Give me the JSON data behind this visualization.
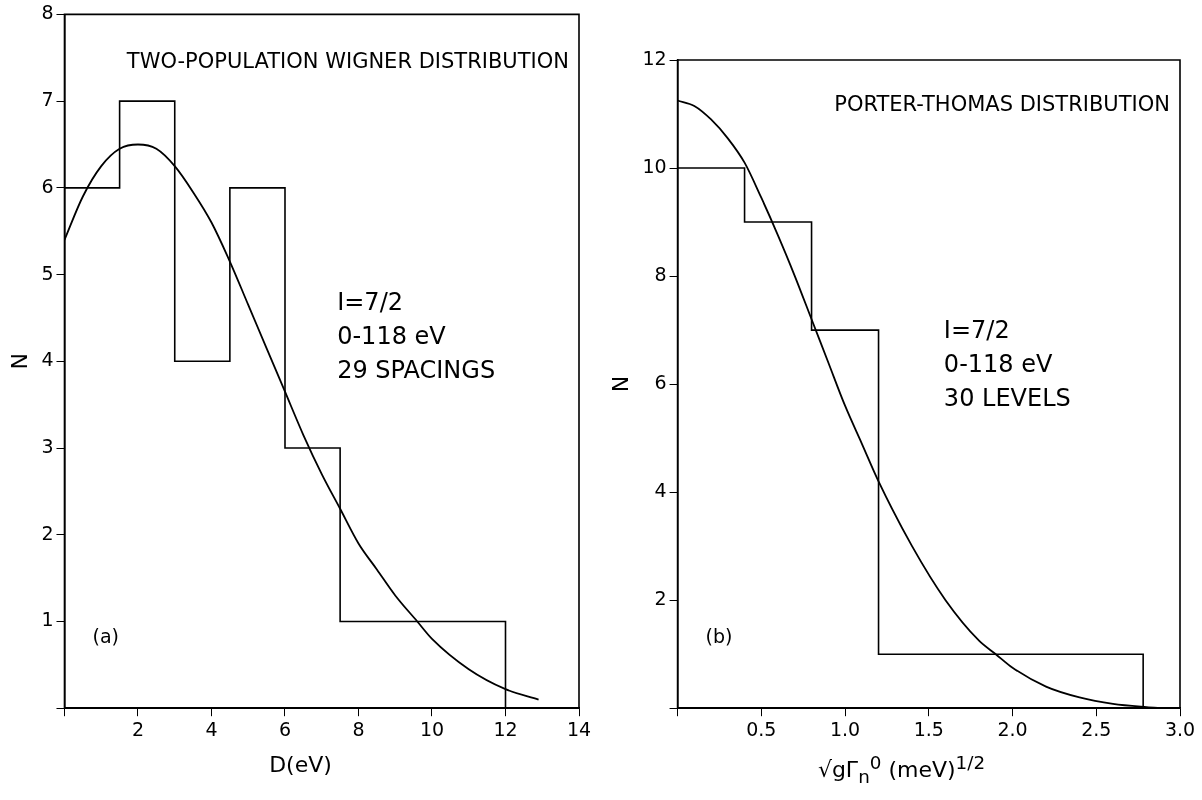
{
  "chart_data": [
    {
      "type": "histogram",
      "title": "TWO-POPULATION WIGNER DISTRIBUTION",
      "xlabel": "D(eV)",
      "ylabel": "N",
      "series": [
        {
          "type": "histogram",
          "color": "#000000",
          "bins": [
            0,
            1.5,
            3,
            4.5,
            6,
            7.5,
            12
          ],
          "values": [
            6,
            7,
            4,
            6,
            3,
            1
          ]
        },
        {
          "type": "line",
          "color": "#000000",
          "x": [
            0,
            0.5,
            1,
            1.5,
            2,
            2.5,
            3,
            3.5,
            4,
            4.5,
            5,
            5.5,
            6,
            6.5,
            7,
            7.5,
            8,
            8.5,
            9,
            9.6,
            10,
            11,
            12,
            12.9
          ],
          "values": [
            5.4,
            5.9,
            6.25,
            6.45,
            6.5,
            6.45,
            6.25,
            5.95,
            5.6,
            5.15,
            4.65,
            4.15,
            3.65,
            3.15,
            2.7,
            2.3,
            1.9,
            1.6,
            1.3,
            1.0,
            0.8,
            0.45,
            0.22,
            0.1
          ]
        }
      ],
      "xlim": [
        0,
        14
      ],
      "xticks": [
        {
          "value": 0,
          "label": null
        },
        2,
        4,
        6,
        8,
        10,
        12,
        14
      ],
      "ylim": [
        0,
        8
      ],
      "yticks": [
        {
          "value": 0,
          "label": null
        },
        1,
        2,
        3,
        4,
        5,
        6,
        7,
        8
      ],
      "grid": false,
      "legend": false,
      "marker": "none",
      "annotations": [
        "I=7/2",
        "0-118 eV",
        "29 SPACINGS",
        "(a)"
      ]
    },
    {
      "type": "histogram",
      "title": "PORTER-THOMAS DISTRIBUTION",
      "xlabel": "√gΓ$_{n}$$^{0}$ (meV)$^{1/2}$",
      "ylabel": "N",
      "series": [
        {
          "type": "histogram",
          "color": "#000000",
          "bins": [
            0,
            0.4,
            0.8,
            1.2,
            2.78
          ],
          "values": [
            10,
            9,
            7,
            1
          ]
        },
        {
          "type": "line",
          "color": "#000000",
          "x": [
            0,
            0.1,
            0.2,
            0.3,
            0.4,
            0.5,
            0.6,
            0.7,
            0.8,
            0.9,
            1.0,
            1.1,
            1.2,
            1.4,
            1.6,
            1.8,
            1.9,
            2.0,
            2.2,
            2.4,
            2.6,
            2.8,
            2.9
          ],
          "values": [
            11.25,
            11.15,
            10.9,
            10.55,
            10.1,
            9.45,
            8.75,
            8.0,
            7.2,
            6.4,
            5.6,
            4.9,
            4.2,
            3.0,
            2.0,
            1.25,
            1.0,
            0.75,
            0.4,
            0.2,
            0.08,
            0.02,
            0
          ]
        }
      ],
      "xlim": [
        0,
        3
      ],
      "xticks": [
        {
          "value": 0,
          "label": null
        },
        0.5,
        {
          "value": 1,
          "label": "1.0"
        },
        1.5,
        {
          "value": 2,
          "label": "2.0"
        },
        2.5,
        {
          "value": 3,
          "label": "3.0"
        }
      ],
      "ylim": [
        0,
        12
      ],
      "yticks": [
        {
          "value": 0,
          "label": null
        },
        2,
        4,
        6,
        8,
        10,
        12
      ],
      "grid": false,
      "legend": false,
      "marker": "none",
      "annotations": [
        "I=7/2",
        "0-118 eV",
        "30 LEVELS",
        "(b)"
      ]
    }
  ]
}
